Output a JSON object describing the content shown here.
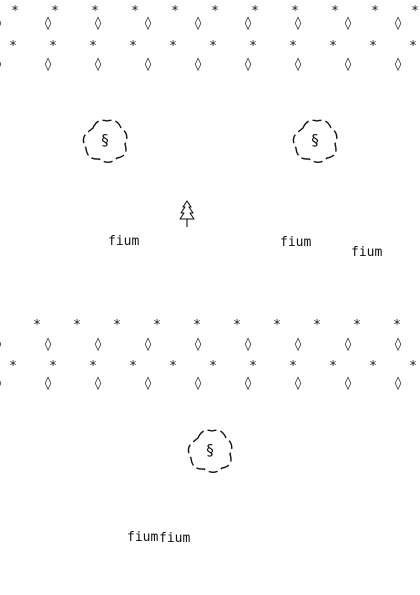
{
  "patterns": {
    "star_glyph": "*",
    "diamond_glyph": "◊"
  },
  "clouds": [
    {
      "label": "§",
      "icon": "dashed-cloud-icon"
    },
    {
      "label": "§",
      "icon": "dashed-cloud-icon"
    },
    {
      "label": "§",
      "icon": "dashed-cloud-icon"
    }
  ],
  "tree_icon": "outline-tree-icon",
  "words": [
    "fium",
    "fium",
    "fium",
    "fium",
    "fium"
  ]
}
